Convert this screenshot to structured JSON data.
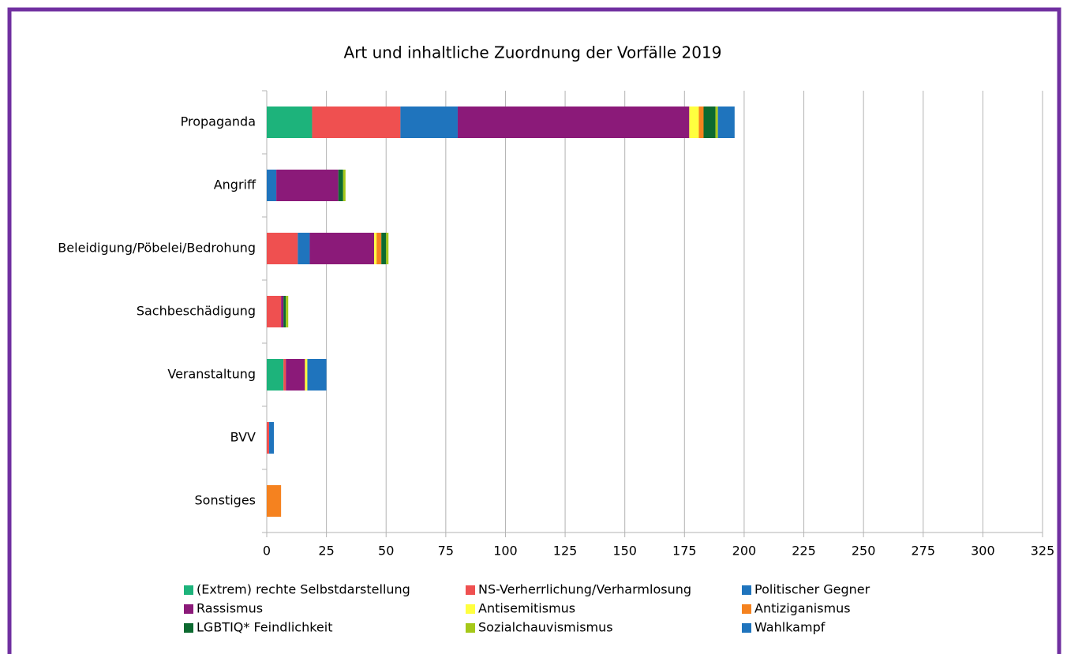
{
  "chart_data": {
    "type": "bar",
    "orientation": "horizontal",
    "stacked": true,
    "title": "Art und inhaltliche Zuordnung der Vorfälle 2019",
    "categories": [
      "Propaganda",
      "Angriff",
      "Beleidigung/Pöbelei/Bedrohung",
      "Sachbeschädigung",
      "Veranstaltung",
      "BVV",
      "Sonstiges"
    ],
    "series": [
      {
        "name": "(Extrem) rechte Selbstdarstellung",
        "color": "#1db37b",
        "values": [
          19,
          0,
          0,
          0,
          7,
          0,
          0
        ]
      },
      {
        "name": "NS-Verherrlichung/Verharmlosung",
        "color": "#ef5050",
        "values": [
          37,
          0,
          13,
          6,
          1,
          1,
          0
        ]
      },
      {
        "name": "Politischer Gegner",
        "color": "#1f74bd",
        "values": [
          24,
          4,
          5,
          0,
          0,
          2,
          0
        ]
      },
      {
        "name": "Rassismus",
        "color": "#8b1a79",
        "values": [
          97,
          26,
          27,
          1,
          8,
          0,
          0
        ]
      },
      {
        "name": "Antisemitismus",
        "color": "#ffff3f",
        "values": [
          4,
          0,
          1,
          0,
          1,
          0,
          0
        ]
      },
      {
        "name": "Antiziganismus",
        "color": "#f5821f",
        "values": [
          2,
          0,
          2,
          0,
          0,
          0,
          6
        ]
      },
      {
        "name": "LGBTIQ* Feindlichkeit",
        "color": "#0c6a30",
        "values": [
          5,
          2,
          2,
          1,
          0,
          0,
          0
        ]
      },
      {
        "name": "Sozialchauvismismus",
        "color": "#a5c819",
        "values": [
          1,
          1,
          1,
          1,
          0,
          0,
          0
        ]
      },
      {
        "name": "Wahlkampf",
        "color": "#1f74bd",
        "values": [
          7,
          0,
          0,
          0,
          8,
          0,
          0
        ]
      }
    ],
    "xlim": [
      0,
      325
    ],
    "xticks": [
      0,
      25,
      50,
      75,
      100,
      125,
      150,
      175,
      200,
      225,
      250,
      275,
      300,
      325
    ],
    "grid": true
  }
}
